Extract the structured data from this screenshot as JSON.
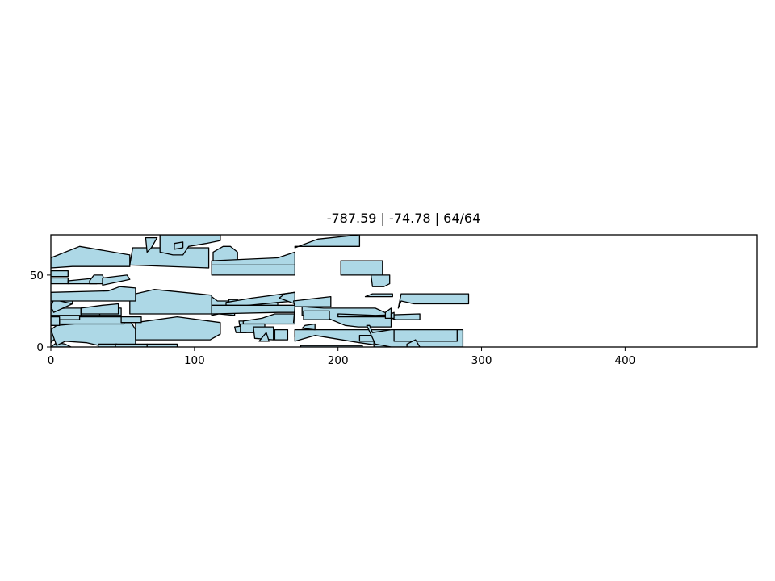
{
  "chart_data": {
    "type": "other",
    "title": "-787.59 | -74.78 | 64/64",
    "xlim": [
      0,
      492
    ],
    "ylim": [
      0,
      78
    ],
    "xticks": [
      0,
      100,
      200,
      300,
      400
    ],
    "yticks": [
      0,
      50
    ],
    "grid": false,
    "legend": "none",
    "fill_color": "#add8e6",
    "edge_color": "#000000",
    "pieces": [
      [
        [
          0,
          0
        ],
        [
          4,
          3
        ],
        [
          10,
          2
        ],
        [
          14,
          0
        ]
      ],
      [
        [
          0,
          3
        ],
        [
          3,
          6
        ],
        [
          3,
          10
        ],
        [
          0,
          12
        ]
      ],
      [
        [
          4,
          1
        ],
        [
          10,
          4
        ],
        [
          25,
          3
        ],
        [
          38,
          0
        ],
        [
          50,
          0
        ],
        [
          59,
          1
        ],
        [
          59,
          12
        ],
        [
          56,
          17
        ],
        [
          27,
          17
        ],
        [
          4,
          15
        ],
        [
          0,
          12
        ]
      ],
      [
        [
          33,
          0
        ],
        [
          46,
          0
        ],
        [
          46,
          2
        ],
        [
          33,
          2
        ]
      ],
      [
        [
          45,
          0
        ],
        [
          67,
          0
        ],
        [
          67,
          2
        ],
        [
          45,
          2
        ]
      ],
      [
        [
          67,
          0
        ],
        [
          88,
          0
        ],
        [
          88,
          2
        ],
        [
          67,
          2
        ]
      ],
      [
        [
          59,
          5
        ],
        [
          111,
          5
        ],
        [
          118,
          9
        ],
        [
          118,
          17
        ],
        [
          88,
          21
        ],
        [
          59,
          17
        ]
      ],
      [
        [
          6,
          16
        ],
        [
          51,
          16
        ],
        [
          51,
          21
        ],
        [
          6,
          21
        ]
      ],
      [
        [
          0,
          19
        ],
        [
          20,
          19
        ],
        [
          20,
          23
        ],
        [
          0,
          23
        ]
      ],
      [
        [
          0,
          15
        ],
        [
          6,
          15
        ],
        [
          6,
          21
        ],
        [
          0,
          21
        ]
      ],
      [
        [
          0,
          22
        ],
        [
          49,
          22
        ],
        [
          49,
          27
        ],
        [
          10,
          27
        ],
        [
          0,
          26
        ]
      ],
      [
        [
          21,
          22
        ],
        [
          34,
          22
        ],
        [
          34,
          27
        ],
        [
          21,
          27
        ]
      ],
      [
        [
          49,
          17
        ],
        [
          63,
          17
        ],
        [
          63,
          21
        ],
        [
          49,
          21
        ]
      ],
      [
        [
          0,
          30
        ],
        [
          15,
          30
        ],
        [
          15,
          36
        ],
        [
          0,
          36
        ]
      ],
      [
        [
          2,
          33
        ],
        [
          15,
          30
        ],
        [
          2,
          24
        ],
        [
          0,
          28
        ]
      ],
      [
        [
          21,
          27
        ],
        [
          36,
          29
        ],
        [
          47,
          30
        ],
        [
          47,
          23
        ],
        [
          21,
          23
        ]
      ],
      [
        [
          55,
          23
        ],
        [
          112,
          23
        ],
        [
          112,
          36
        ],
        [
          72,
          40
        ],
        [
          55,
          36
        ]
      ],
      [
        [
          0,
          38
        ],
        [
          40,
          39
        ],
        [
          48,
          42
        ],
        [
          59,
          41
        ],
        [
          59,
          32
        ],
        [
          0,
          32
        ]
      ],
      [
        [
          0,
          44
        ],
        [
          12,
          44
        ],
        [
          12,
          48
        ],
        [
          0,
          48
        ]
      ],
      [
        [
          0,
          49
        ],
        [
          12,
          49
        ],
        [
          12,
          53
        ],
        [
          0,
          53
        ]
      ],
      [
        [
          12,
          46
        ],
        [
          32,
          48
        ],
        [
          32,
          44
        ],
        [
          12,
          44
        ]
      ],
      [
        [
          27,
          46
        ],
        [
          30,
          50
        ],
        [
          36,
          50
        ],
        [
          38,
          44
        ],
        [
          27,
          44
        ]
      ],
      [
        [
          36,
          48
        ],
        [
          53,
          50
        ],
        [
          55,
          47
        ],
        [
          36,
          43
        ]
      ],
      [
        [
          0,
          55
        ],
        [
          15,
          56
        ],
        [
          55,
          56
        ],
        [
          55,
          64
        ],
        [
          20,
          70
        ],
        [
          0,
          62
        ]
      ],
      [
        [
          55,
          57
        ],
        [
          110,
          55
        ],
        [
          110,
          69
        ],
        [
          57,
          69
        ]
      ],
      [
        [
          67,
          66
        ],
        [
          70,
          69
        ],
        [
          74,
          76
        ],
        [
          66,
          76
        ]
      ],
      [
        [
          76,
          66
        ],
        [
          85,
          64
        ],
        [
          92,
          64
        ],
        [
          96,
          70
        ],
        [
          108,
          72
        ],
        [
          118,
          74
        ],
        [
          118,
          78
        ],
        [
          76,
          78
        ]
      ],
      [
        [
          86,
          72
        ],
        [
          92,
          73
        ],
        [
          92,
          69
        ],
        [
          86,
          68
        ]
      ],
      [
        [
          115,
          57
        ],
        [
          113,
          60
        ],
        [
          113,
          66
        ],
        [
          120,
          70
        ],
        [
          125,
          70
        ],
        [
          130,
          66
        ],
        [
          130,
          60
        ]
      ],
      [
        [
          112,
          57
        ],
        [
          170,
          57
        ],
        [
          170,
          50
        ],
        [
          112,
          50
        ]
      ],
      [
        [
          112,
          60
        ],
        [
          158,
          62
        ],
        [
          170,
          66
        ],
        [
          170,
          57
        ],
        [
          112,
          57
        ]
      ],
      [
        [
          112,
          35
        ],
        [
          116,
          32
        ],
        [
          126,
          32
        ],
        [
          128,
          28
        ],
        [
          128,
          22
        ],
        [
          117,
          23
        ],
        [
          112,
          22
        ]
      ],
      [
        [
          124,
          30
        ],
        [
          130,
          30
        ],
        [
          130,
          33
        ],
        [
          124,
          33
        ]
      ],
      [
        [
          122,
          29
        ],
        [
          138,
          28
        ],
        [
          158,
          31
        ],
        [
          170,
          32
        ],
        [
          170,
          38
        ],
        [
          140,
          34
        ],
        [
          122,
          31
        ]
      ],
      [
        [
          159,
          34
        ],
        [
          163,
          37
        ],
        [
          170,
          38
        ],
        [
          170,
          30
        ]
      ],
      [
        [
          130,
          28
        ],
        [
          138,
          29
        ],
        [
          158,
          31
        ],
        [
          158,
          25
        ],
        [
          130,
          25
        ]
      ],
      [
        [
          112,
          23
        ],
        [
          158,
          24
        ],
        [
          170,
          24
        ],
        [
          170,
          29
        ],
        [
          112,
          29
        ]
      ],
      [
        [
          132,
          12
        ],
        [
          136,
          13
        ],
        [
          137,
          18
        ],
        [
          131,
          18
        ]
      ],
      [
        [
          128,
          14
        ],
        [
          129,
          10
        ],
        [
          136,
          10
        ],
        [
          136,
          15
        ]
      ],
      [
        [
          134,
          18
        ],
        [
          147,
          20
        ],
        [
          156,
          23
        ],
        [
          170,
          23
        ],
        [
          170,
          16
        ],
        [
          134,
          16
        ]
      ],
      [
        [
          132,
          16
        ],
        [
          149,
          16
        ],
        [
          149,
          10
        ],
        [
          132,
          10
        ]
      ],
      [
        [
          142,
          6
        ],
        [
          155,
          5
        ],
        [
          155,
          14
        ],
        [
          141,
          14
        ]
      ],
      [
        [
          145,
          4
        ],
        [
          150,
          10
        ],
        [
          152,
          4
        ],
        [
          145,
          4
        ]
      ],
      [
        [
          156,
          5
        ],
        [
          165,
          5
        ],
        [
          165,
          12
        ],
        [
          156,
          12
        ]
      ],
      [
        [
          170,
          7
        ],
        [
          174,
          8
        ],
        [
          174,
          12
        ],
        [
          170,
          12
        ]
      ],
      [
        [
          174,
          0
        ],
        [
          217,
          0
        ],
        [
          217,
          1
        ],
        [
          174,
          1
        ]
      ],
      [
        [
          170,
          4
        ],
        [
          184,
          8
        ],
        [
          215,
          3
        ],
        [
          236,
          0
        ],
        [
          236,
          12
        ],
        [
          170,
          12
        ]
      ],
      [
        [
          175,
          22
        ],
        [
          193,
          20
        ],
        [
          205,
          15
        ],
        [
          214,
          14
        ],
        [
          237,
          14
        ],
        [
          237,
          22
        ],
        [
          226,
          27
        ],
        [
          190,
          27
        ],
        [
          175,
          28
        ]
      ],
      [
        [
          175,
          13
        ],
        [
          177,
          15
        ],
        [
          184,
          16
        ],
        [
          184,
          12
        ]
      ],
      [
        [
          200,
          21
        ],
        [
          235,
          21
        ],
        [
          240,
          19
        ],
        [
          257,
          19
        ],
        [
          257,
          23
        ],
        [
          226,
          22
        ],
        [
          200,
          23
        ]
      ],
      [
        [
          233,
          24
        ],
        [
          237,
          27
        ],
        [
          237,
          20
        ],
        [
          233,
          20
        ]
      ],
      [
        [
          242,
          27
        ],
        [
          244,
          32
        ],
        [
          253,
          30
        ],
        [
          291,
          30
        ],
        [
          291,
          37
        ],
        [
          244,
          37
        ]
      ],
      [
        [
          219,
          35
        ],
        [
          224,
          37
        ],
        [
          238,
          37
        ],
        [
          238,
          35
        ],
        [
          219,
          35
        ]
      ],
      [
        [
          224,
          42
        ],
        [
          232,
          42
        ],
        [
          236,
          44
        ],
        [
          236,
          50
        ],
        [
          223,
          50
        ]
      ],
      [
        [
          225,
          0
        ],
        [
          235,
          0
        ],
        [
          235,
          4
        ],
        [
          225,
          4
        ]
      ],
      [
        [
          215,
          4
        ],
        [
          239,
          4
        ],
        [
          239,
          8
        ],
        [
          215,
          8
        ]
      ],
      [
        [
          169,
          17
        ],
        [
          170,
          28
        ],
        [
          169,
          32
        ],
        [
          195,
          35
        ],
        [
          195,
          28
        ],
        [
          170,
          28
        ]
      ],
      [
        [
          176,
          19
        ],
        [
          176,
          25
        ],
        [
          194,
          25
        ],
        [
          194,
          19
        ]
      ],
      [
        [
          237,
          20
        ],
        [
          237,
          23
        ],
        [
          239,
          24
        ],
        [
          239,
          20
        ]
      ],
      [
        [
          170,
          69
        ],
        [
          186,
          75
        ],
        [
          215,
          78
        ],
        [
          215,
          70
        ],
        [
          170,
          70
        ]
      ],
      [
        [
          222,
          15
        ],
        [
          220,
          15
        ],
        [
          226,
          2
        ],
        [
          237,
          0
        ],
        [
          287,
          0
        ],
        [
          287,
          12
        ],
        [
          237,
          12
        ],
        [
          224,
          10
        ]
      ],
      [
        [
          239,
          4
        ],
        [
          283,
          4
        ],
        [
          283,
          12
        ],
        [
          239,
          12
        ]
      ],
      [
        [
          248,
          2
        ],
        [
          254,
          5
        ],
        [
          257,
          0
        ],
        [
          248,
          0
        ]
      ],
      [
        [
          202,
          50
        ],
        [
          231,
          50
        ],
        [
          231,
          60
        ],
        [
          225,
          60
        ],
        [
          202,
          60
        ]
      ]
    ]
  }
}
